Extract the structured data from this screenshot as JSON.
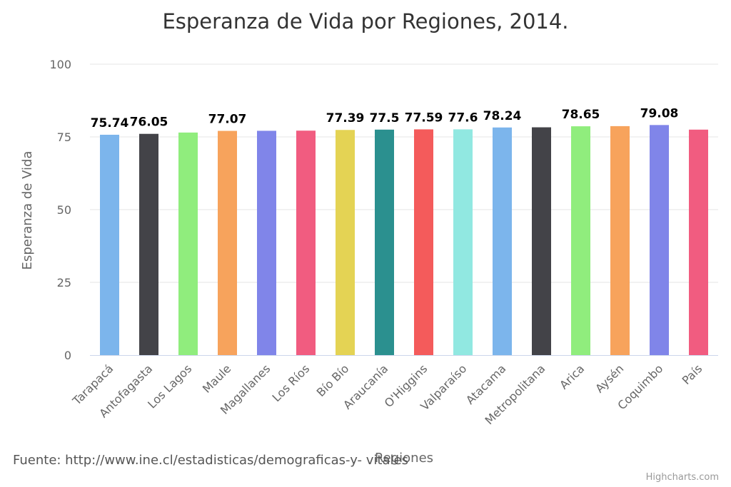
{
  "chart_data": {
    "type": "bar",
    "title": "Esperanza de Vida por Regiones, 2014.",
    "xlabel": "Regiones",
    "ylabel": "Esperanza de Vida",
    "ylim": [
      0,
      100
    ],
    "yticks": [
      "0",
      "25",
      "50",
      "75",
      "100"
    ],
    "grid": true,
    "categories": [
      "Tarapacá",
      "Antofagasta",
      "Los Lagos",
      "Maule",
      "Magallanes",
      "Los Ríos",
      "Bío Bío",
      "Araucanía",
      "O'Higgins",
      "Valparaíso",
      "Atacama",
      "Metropolitana",
      "Arica",
      "Aysén",
      "Coquimbo",
      "País"
    ],
    "values": [
      75.74,
      76.05,
      76.5,
      77.07,
      77.1,
      77.15,
      77.39,
      77.5,
      77.59,
      77.6,
      78.24,
      78.3,
      78.65,
      78.7,
      79.08,
      77.5
    ],
    "data_labels": [
      "75.74",
      "76.05",
      "",
      "77.07",
      "",
      "",
      "77.39",
      "77.5",
      "77.59",
      "77.6",
      "78.24",
      "",
      "78.65",
      "",
      "79.08",
      ""
    ],
    "colors": [
      "#7cb5ec",
      "#434348",
      "#90ed7d",
      "#f7a35c",
      "#8085e9",
      "#f15c80",
      "#e4d354",
      "#2b908f",
      "#f45b5b",
      "#91e8e1",
      "#7cb5ec",
      "#434348",
      "#90ed7d",
      "#f7a35c",
      "#8085e9",
      "#f15c80"
    ]
  },
  "source": "Fuente: http://www.ine.cl/estadisticas/demograficas-y- vitales",
  "credits": "Highcharts.com"
}
